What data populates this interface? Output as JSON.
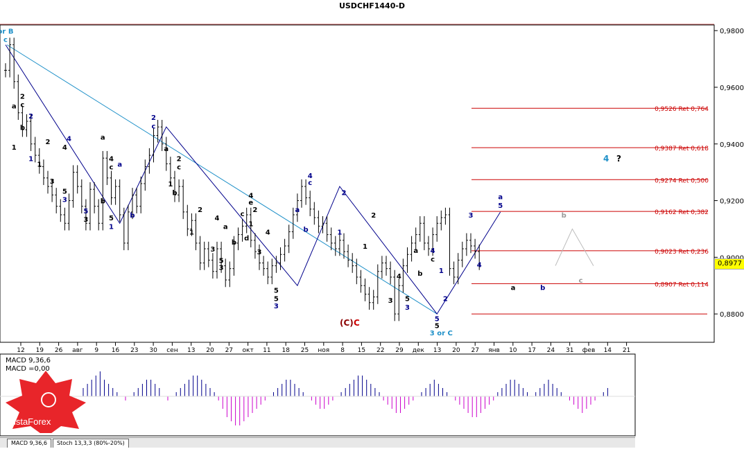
{
  "window": {
    "title": "USDCHF1440-D"
  },
  "current_price": "0,8977",
  "indicator": {
    "line1": "MACD 9,36,6",
    "line2": "MACD =0,00"
  },
  "tabs": [
    {
      "label": "MACD 9,36,6"
    },
    {
      "label": "Stoch 13,3,3 (80%-20%)"
    }
  ],
  "logo": {
    "text": "InstaForex"
  },
  "colors": {
    "fib": "#cc0000",
    "wave_navy": "#00008b",
    "trend_blue": "#1e90c8",
    "macd_pos": "#00008b",
    "macd_neg": "#cc00cc"
  },
  "chart_data": {
    "type": "line",
    "title": "USDCHF1440-D",
    "y_ticks": [
      "0,9800",
      "0,9600",
      "0,9400",
      "0,9200",
      "0,9000",
      "0,8800"
    ],
    "ylim": [
      0.87,
      0.982
    ],
    "x_ticks": [
      "12",
      "19",
      "26",
      "авг",
      "9",
      "16",
      "23",
      "30",
      "сен",
      "13",
      "20",
      "27",
      "окт",
      "11",
      "18",
      "25",
      "ноя",
      "8",
      "15",
      "22",
      "29",
      "дек",
      "13",
      "20",
      "27",
      "янв",
      "10",
      "17",
      "24",
      "31",
      "фев",
      "14",
      "21"
    ],
    "fib_levels": [
      {
        "price": 0.9526,
        "label": "0,9526 Ret 0,764"
      },
      {
        "price": 0.9387,
        "label": "0,9387 Ret 0,618"
      },
      {
        "price": 0.9274,
        "label": "0,9274 Ret 0,500"
      },
      {
        "price": 0.9162,
        "label": "0,9162 Ret 0,382"
      },
      {
        "price": 0.9023,
        "label": "0,9023 Ret 0,236"
      },
      {
        "price": 0.8907,
        "label": "0,8907 Ret 0,114"
      },
      {
        "price": 0.88,
        "label": ""
      }
    ],
    "close_series": [
      0.966,
      0.975,
      0.962,
      0.951,
      0.945,
      0.948,
      0.94,
      0.936,
      0.932,
      0.928,
      0.925,
      0.922,
      0.918,
      0.915,
      0.912,
      0.92,
      0.93,
      0.925,
      0.918,
      0.912,
      0.924,
      0.918,
      0.912,
      0.935,
      0.928,
      0.921,
      0.925,
      0.915,
      0.905,
      0.916,
      0.922,
      0.918,
      0.926,
      0.932,
      0.936,
      0.943,
      0.946,
      0.94,
      0.933,
      0.928,
      0.922,
      0.925,
      0.916,
      0.91,
      0.913,
      0.905,
      0.898,
      0.903,
      0.899,
      0.895,
      0.903,
      0.897,
      0.892,
      0.896,
      0.905,
      0.908,
      0.911,
      0.915,
      0.906,
      0.902,
      0.898,
      0.896,
      0.893,
      0.897,
      0.898,
      0.901,
      0.904,
      0.909,
      0.915,
      0.92,
      0.925,
      0.921,
      0.917,
      0.914,
      0.911,
      0.912,
      0.908,
      0.905,
      0.903,
      0.906,
      0.902,
      0.899,
      0.897,
      0.893,
      0.89,
      0.887,
      0.884,
      0.886,
      0.895,
      0.898,
      0.896,
      0.893,
      0.88,
      0.89,
      0.897,
      0.901,
      0.905,
      0.908,
      0.912,
      0.905,
      0.903,
      0.908,
      0.912,
      0.914,
      0.915,
      0.896,
      0.893,
      0.899,
      0.903,
      0.906,
      0.904,
      0.902,
      0.898
    ],
    "waves": [
      {
        "label": "or B",
        "color": "#1e90c8",
        "idx": 0,
        "price": 0.979
      },
      {
        "label": "c",
        "color": "#1e90c8",
        "idx": 0,
        "price": 0.976
      },
      {
        "label": "2",
        "color": "#000",
        "idx": 4,
        "price": 0.956
      },
      {
        "label": "a",
        "color": "#000",
        "idx": 2,
        "price": 0.9525
      },
      {
        "label": "c",
        "color": "#000",
        "idx": 4,
        "price": 0.953
      },
      {
        "label": "b",
        "color": "#000",
        "idx": 4,
        "price": 0.945
      },
      {
        "label": "2",
        "color": "#00008b",
        "idx": 6,
        "price": 0.949
      },
      {
        "label": "1",
        "color": "#000",
        "idx": 2,
        "price": 0.938
      },
      {
        "label": "1",
        "color": "#00008b",
        "idx": 6,
        "price": 0.934
      },
      {
        "label": "2",
        "color": "#000",
        "idx": 10,
        "price": 0.94
      },
      {
        "label": "1",
        "color": "#000",
        "idx": 8,
        "price": 0.932
      },
      {
        "label": "3",
        "color": "#000",
        "idx": 11,
        "price": 0.926
      },
      {
        "label": "4",
        "color": "#00008b",
        "idx": 15,
        "price": 0.941
      },
      {
        "label": "4",
        "color": "#000",
        "idx": 14,
        "price": 0.938
      },
      {
        "label": "5",
        "color": "#000",
        "idx": 14,
        "price": 0.9225
      },
      {
        "label": "3",
        "color": "#00008b",
        "idx": 14,
        "price": 0.9195
      },
      {
        "label": "5",
        "color": "#00008b",
        "idx": 19,
        "price": 0.9155
      },
      {
        "label": "3",
        "color": "#000",
        "idx": 19,
        "price": 0.9125
      },
      {
        "label": "a",
        "color": "#000",
        "idx": 23,
        "price": 0.9415
      },
      {
        "label": "4",
        "color": "#000",
        "idx": 25,
        "price": 0.934
      },
      {
        "label": "c",
        "color": "#000",
        "idx": 25,
        "price": 0.931
      },
      {
        "label": "a",
        "color": "#00008b",
        "idx": 27,
        "price": 0.932
      },
      {
        "label": "b",
        "color": "#000",
        "idx": 23,
        "price": 0.919
      },
      {
        "label": "5",
        "color": "#000",
        "idx": 25,
        "price": 0.913
      },
      {
        "label": "1",
        "color": "#00008b",
        "idx": 25,
        "price": 0.91
      },
      {
        "label": "b",
        "color": "#00008b",
        "idx": 30,
        "price": 0.914
      },
      {
        "label": "2",
        "color": "#00008b",
        "idx": 35,
        "price": 0.9485
      },
      {
        "label": "c",
        "color": "#00008b",
        "idx": 35,
        "price": 0.9455
      },
      {
        "label": "a",
        "color": "#000",
        "idx": 38,
        "price": 0.9375
      },
      {
        "label": "2",
        "color": "#000",
        "idx": 41,
        "price": 0.934
      },
      {
        "label": "c",
        "color": "#000",
        "idx": 41,
        "price": 0.931
      },
      {
        "label": "1",
        "color": "#000",
        "idx": 39,
        "price": 0.925
      },
      {
        "label": "b",
        "color": "#000",
        "idx": 40,
        "price": 0.922
      },
      {
        "label": "2",
        "color": "#000",
        "idx": 46,
        "price": 0.916
      },
      {
        "label": "1",
        "color": "#000",
        "idx": 44,
        "price": 0.908
      },
      {
        "label": "4",
        "color": "#000",
        "idx": 50,
        "price": 0.913
      },
      {
        "label": "a",
        "color": "#000",
        "idx": 52,
        "price": 0.91
      },
      {
        "label": "3",
        "color": "#000",
        "idx": 49,
        "price": 0.902
      },
      {
        "label": "5",
        "color": "#000",
        "idx": 51,
        "price": 0.898
      },
      {
        "label": "3",
        "color": "#000",
        "idx": 51,
        "price": 0.8955
      },
      {
        "label": "b",
        "color": "#000",
        "idx": 54,
        "price": 0.9045
      },
      {
        "label": "d",
        "color": "#000",
        "idx": 57,
        "price": 0.906
      },
      {
        "label": "c",
        "color": "#000",
        "idx": 56,
        "price": 0.9145
      },
      {
        "label": "4",
        "color": "#000",
        "idx": 58,
        "price": 0.921
      },
      {
        "label": "e",
        "color": "#000",
        "idx": 58,
        "price": 0.9185
      },
      {
        "label": "2",
        "color": "#000",
        "idx": 59,
        "price": 0.916
      },
      {
        "label": "1",
        "color": "#000",
        "idx": 58,
        "price": 0.911
      },
      {
        "label": "4",
        "color": "#000",
        "idx": 62,
        "price": 0.908
      },
      {
        "label": "3",
        "color": "#000",
        "idx": 60,
        "price": 0.901
      },
      {
        "label": "5",
        "color": "#000",
        "idx": 64,
        "price": 0.8875
      },
      {
        "label": "5",
        "color": "#000",
        "idx": 64,
        "price": 0.8845
      },
      {
        "label": "3",
        "color": "#00008b",
        "idx": 64,
        "price": 0.882
      },
      {
        "label": "a",
        "color": "#00008b",
        "idx": 69,
        "price": 0.916
      },
      {
        "label": "b",
        "color": "#00008b",
        "idx": 71,
        "price": 0.909
      },
      {
        "label": "4",
        "color": "#00008b",
        "idx": 72,
        "price": 0.928
      },
      {
        "label": "c",
        "color": "#00008b",
        "idx": 72,
        "price": 0.9255
      },
      {
        "label": "2",
        "color": "#00008b",
        "idx": 80,
        "price": 0.922
      },
      {
        "label": "1",
        "color": "#00008b",
        "idx": 79,
        "price": 0.908
      },
      {
        "label": "1",
        "color": "#000",
        "idx": 85,
        "price": 0.903
      },
      {
        "label": "2",
        "color": "#000",
        "idx": 87,
        "price": 0.914
      },
      {
        "label": "4",
        "color": "#000",
        "idx": 93,
        "price": 0.8925
      },
      {
        "label": "3",
        "color": "#000",
        "idx": 91,
        "price": 0.884
      },
      {
        "label": "5",
        "color": "#000",
        "idx": 95,
        "price": 0.8845
      },
      {
        "label": "3",
        "color": "#00008b",
        "idx": 95,
        "price": 0.8815
      },
      {
        "label": "a",
        "color": "#000",
        "idx": 97,
        "price": 0.9015
      },
      {
        "label": "b",
        "color": "#000",
        "idx": 98,
        "price": 0.8935
      },
      {
        "label": "4",
        "color": "#00008b",
        "idx": 101,
        "price": 0.9015
      },
      {
        "label": "c",
        "color": "#000",
        "idx": 101,
        "price": 0.8985
      },
      {
        "label": "1",
        "color": "#00008b",
        "idx": 103,
        "price": 0.8945
      },
      {
        "label": "2",
        "color": "#00008b",
        "idx": 104,
        "price": 0.8845
      },
      {
        "label": "5",
        "color": "#00008b",
        "idx": 102,
        "price": 0.8775
      },
      {
        "label": "5",
        "color": "#000",
        "idx": 102,
        "price": 0.875
      },
      {
        "label": "3 or C",
        "color": "#1e90c8",
        "idx": 103,
        "price": 0.8725
      },
      {
        "label": "3",
        "color": "#00008b",
        "idx": 110,
        "price": 0.914
      },
      {
        "label": "4",
        "color": "#00008b",
        "idx": 112,
        "price": 0.8965
      },
      {
        "label": "a",
        "color": "#00008b",
        "idx": 117,
        "price": 0.9205
      },
      {
        "label": "5",
        "color": "#00008b",
        "idx": 117,
        "price": 0.9175
      },
      {
        "label": "a",
        "color": "#000",
        "idx": 120,
        "price": 0.8885
      },
      {
        "label": "b",
        "color": "#00008b",
        "idx": 127,
        "price": 0.8885
      },
      {
        "label": "b",
        "color": "#999",
        "idx": 132,
        "price": 0.914
      },
      {
        "label": "c",
        "color": "#999",
        "idx": 136,
        "price": 0.891
      }
    ],
    "big_labels": [
      {
        "label": "(C)",
        "color": "#8b0000",
        "x": 490,
        "y": 470
      },
      {
        "label": "C",
        "color": "#cc0000",
        "x": 510,
        "y": 470
      },
      {
        "label": "4",
        "color": "#1e90c8",
        "x": 870,
        "y": 233
      },
      {
        "label": "?",
        "color": "#000",
        "x": 889,
        "y": 233
      }
    ],
    "macd_values": [
      2,
      3,
      4,
      5,
      6,
      4,
      3,
      2,
      1,
      0,
      -1,
      0,
      1,
      2,
      3,
      4,
      4,
      3,
      2,
      0,
      -1,
      0,
      1,
      2,
      3,
      4,
      5,
      5,
      4,
      3,
      2,
      1,
      -1,
      -3,
      -5,
      -6,
      -7,
      -7,
      -6,
      -5,
      -4,
      -3,
      -2,
      -1,
      0,
      1,
      2,
      3,
      4,
      4,
      3,
      2,
      1,
      0,
      -1,
      -2,
      -3,
      -3,
      -2,
      -1,
      0,
      1,
      2,
      3,
      4,
      5,
      5,
      4,
      3,
      2,
      1,
      -1,
      -2,
      -3,
      -4,
      -4,
      -3,
      -2,
      -1,
      0,
      1,
      2,
      3,
      4,
      3,
      2,
      1,
      0,
      -1,
      -2,
      -3,
      -4,
      -5,
      -5,
      -4,
      -3,
      -2,
      -1,
      1,
      2,
      3,
      4,
      4,
      3,
      2,
      1,
      0,
      1,
      2,
      3,
      4,
      3,
      2,
      1,
      0,
      -1,
      -2,
      -3,
      -4,
      -3,
      -2,
      -1,
      0,
      1,
      2
    ]
  }
}
